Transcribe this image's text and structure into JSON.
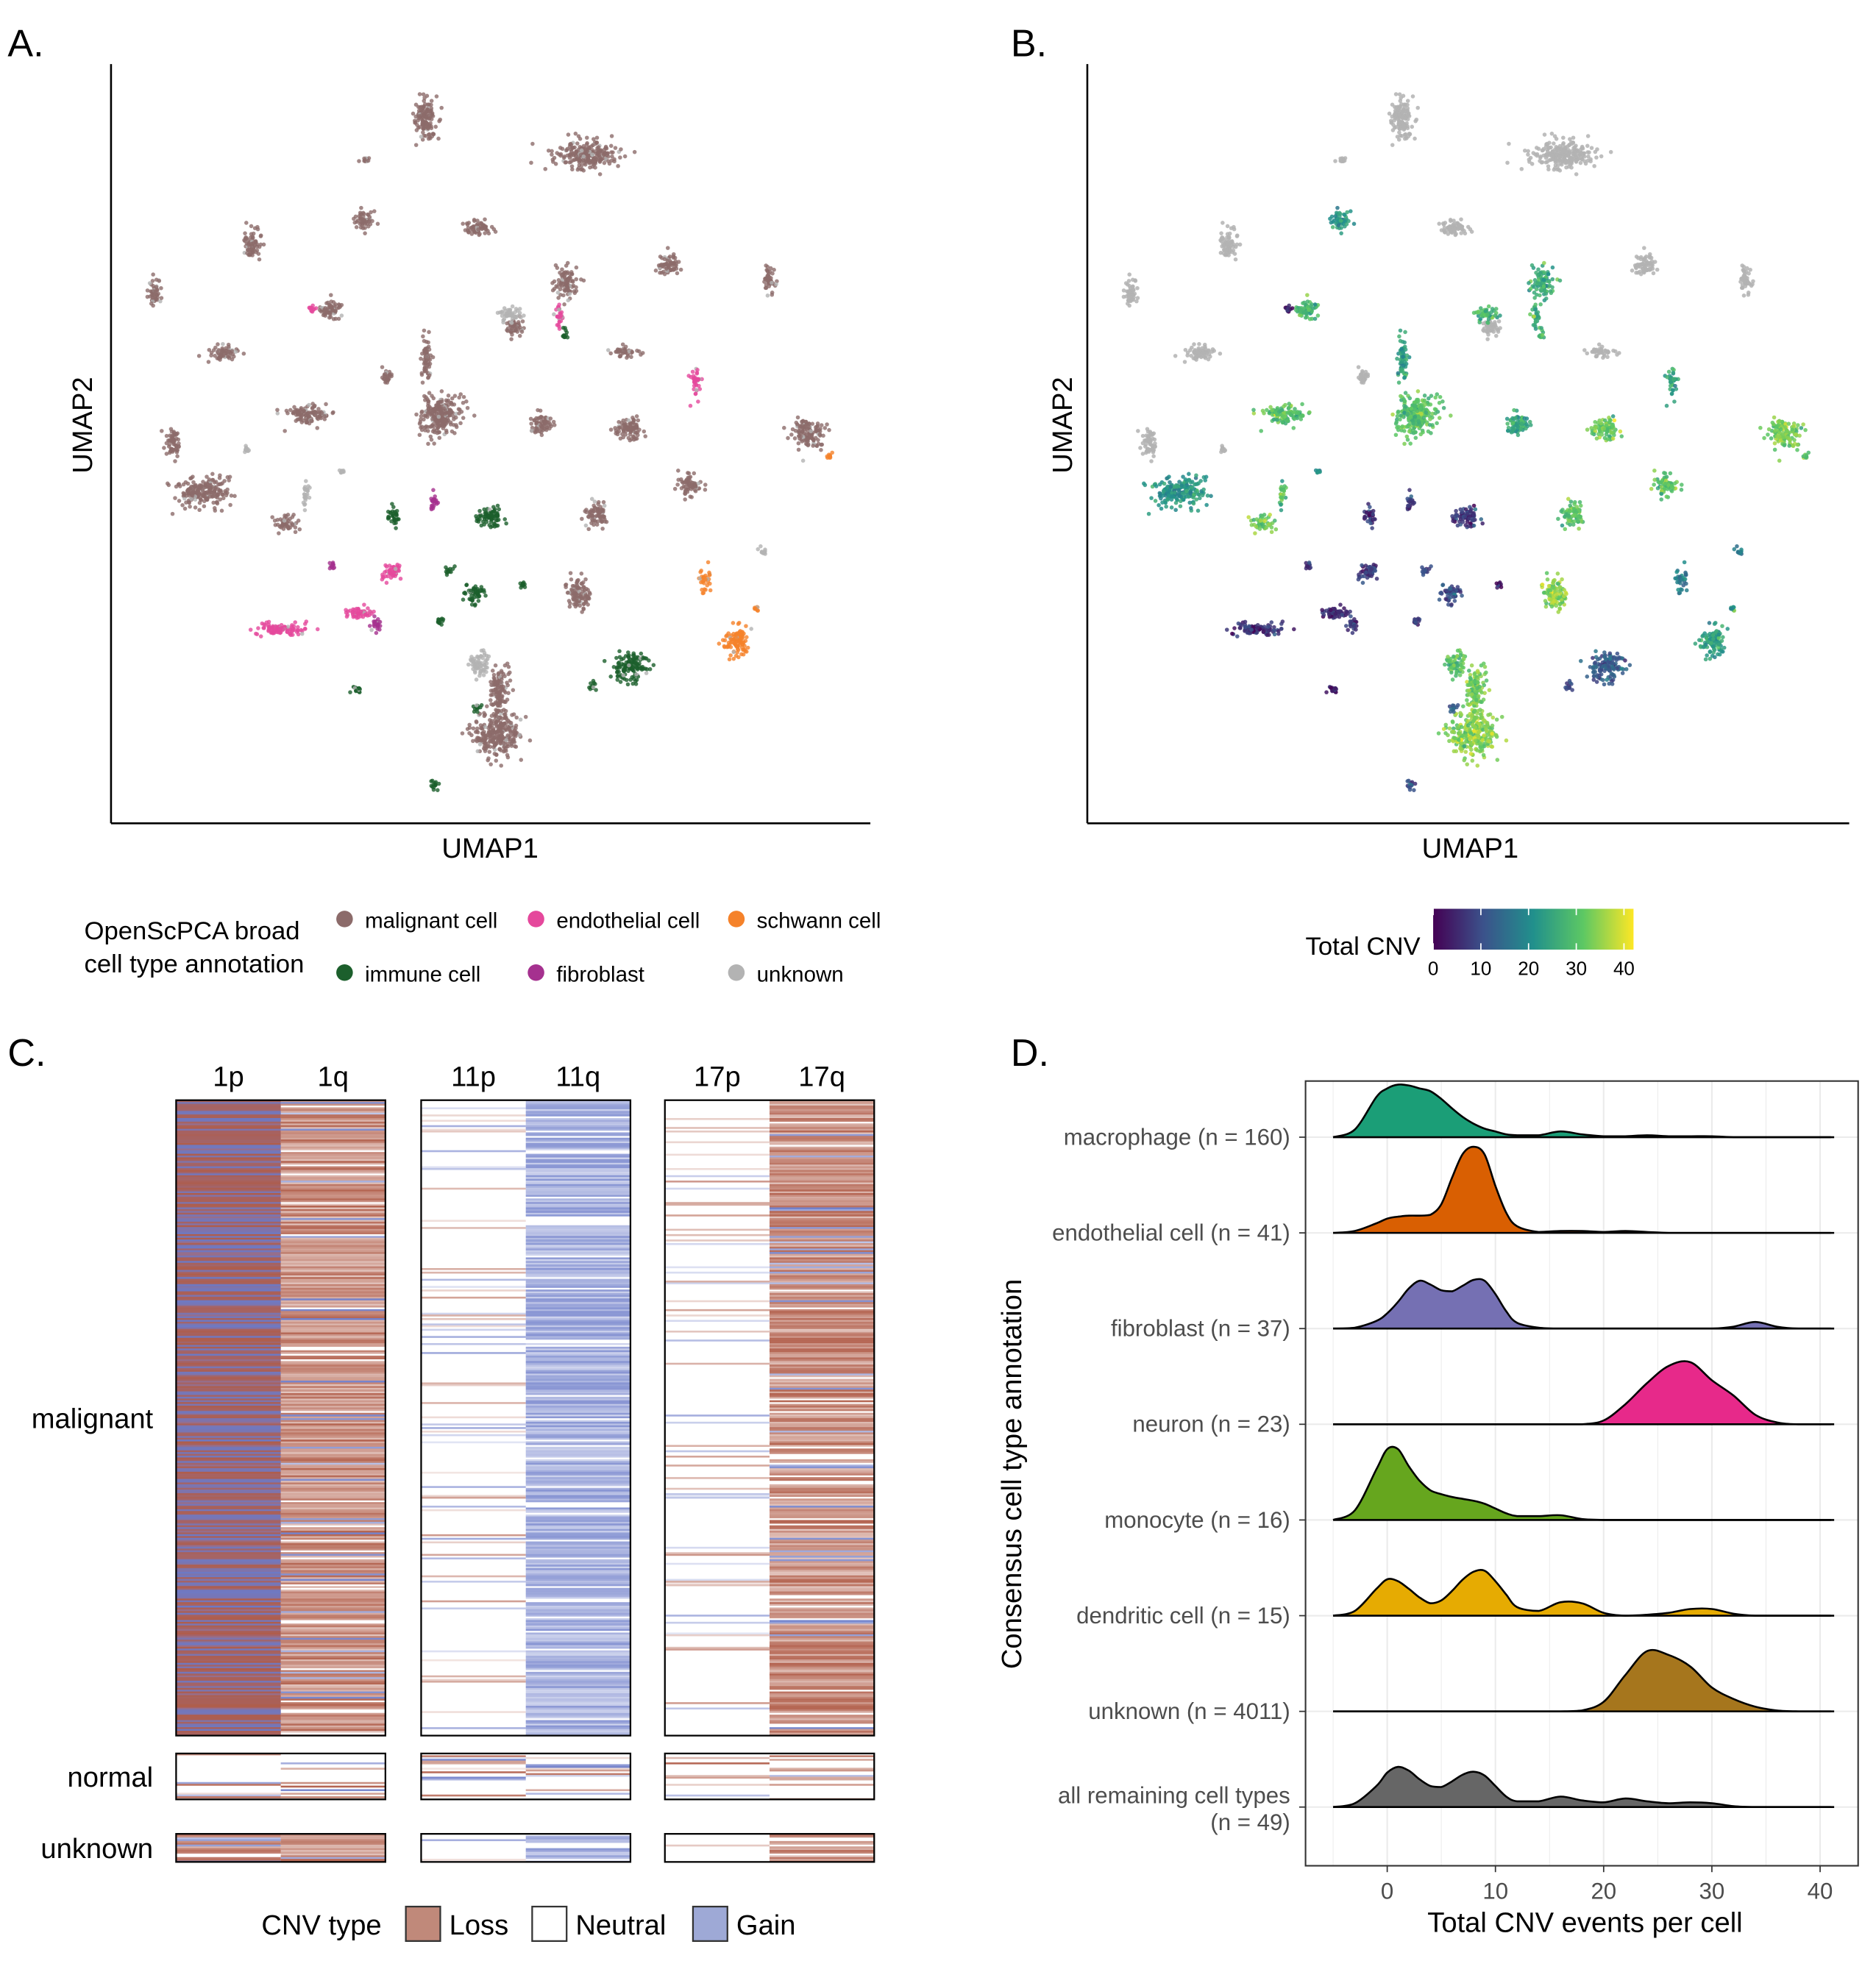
{
  "panels": {
    "a": "A.",
    "b": "B.",
    "c": "C.",
    "d": "D."
  },
  "chart_data": [
    {
      "panel": "A",
      "type": "scatter",
      "xlabel": "UMAP1",
      "ylabel": "UMAP2",
      "legend": {
        "title_line1": "OpenScPCA broad",
        "title_line2": "cell type annotation",
        "placement": "bottom",
        "entries": [
          {
            "label": "malignant cell",
            "color": "#8c6b6a"
          },
          {
            "label": "endothelial cell",
            "color": "#e5489c"
          },
          {
            "label": "schwann cell",
            "color": "#f5822a"
          },
          {
            "label": "immune cell",
            "color": "#1c5f2c"
          },
          {
            "label": "fibroblast",
            "color": "#a5318f"
          },
          {
            "label": "unknown",
            "color": "#b3b3b3"
          }
        ]
      },
      "grid": false
    },
    {
      "panel": "B",
      "type": "scatter",
      "xlabel": "UMAP1",
      "ylabel": "UMAP2",
      "colorbar": {
        "title": "Total CNV",
        "colormap": "viridis",
        "range": [
          0,
          42
        ],
        "ticks": [
          "0",
          "10",
          "20",
          "30",
          "40"
        ],
        "na_color": "#b3b3b3"
      },
      "grid": false
    },
    {
      "panel": "C",
      "type": "heatmap",
      "column_labels": [
        "1p",
        "1q",
        "11p",
        "11q",
        "17p",
        "17q"
      ],
      "row_groups": [
        "malignant",
        "normal",
        "unknown"
      ],
      "predominant_state_malignant": {
        "1p": "mixed",
        "1q": "Loss",
        "11p": "Neutral",
        "11q": "Gain",
        "17p": "Neutral",
        "17q": "Loss"
      },
      "legend": {
        "title": "CNV type",
        "entries": [
          {
            "label": "Loss",
            "color": "#c0897a"
          },
          {
            "label": "Neutral",
            "color": "#ffffff"
          },
          {
            "label": "Gain",
            "color": "#9ea9d6"
          }
        ],
        "placement": "bottom"
      }
    },
    {
      "panel": "D",
      "type": "area",
      "subtype": "ridgeline density",
      "xlabel": "Total CNV events per cell",
      "ylabel": "Consensus cell type annotation",
      "xlim": [
        -5,
        41
      ],
      "xticks": [
        "0",
        "10",
        "20",
        "30",
        "40"
      ],
      "grid": true,
      "x": [
        -5,
        -3,
        -1,
        0,
        1,
        2,
        3,
        4,
        5,
        6,
        7,
        8,
        9,
        10,
        11,
        12,
        14,
        16,
        18,
        20,
        22,
        24,
        26,
        28,
        30,
        32,
        34,
        36,
        38,
        41
      ],
      "series": [
        {
          "name": "macrophage (n = 160)",
          "color": "#1b9e77",
          "values": [
            0,
            0.08,
            0.42,
            0.51,
            0.55,
            0.54,
            0.51,
            0.48,
            0.4,
            0.3,
            0.21,
            0.14,
            0.09,
            0.06,
            0.03,
            0.02,
            0.02,
            0.06,
            0.03,
            0.01,
            0.01,
            0.02,
            0.01,
            0.01,
            0.01,
            0,
            0,
            0,
            0,
            0
          ]
        },
        {
          "name": "endothelial cell (n = 41)",
          "color": "#d95f02",
          "values": [
            0,
            0.02,
            0.1,
            0.15,
            0.17,
            0.18,
            0.18,
            0.19,
            0.3,
            0.58,
            0.83,
            0.9,
            0.82,
            0.49,
            0.21,
            0.07,
            0.01,
            0.02,
            0.02,
            0.01,
            0.02,
            0.01,
            0,
            0,
            0,
            0,
            0,
            0,
            0,
            0
          ]
        },
        {
          "name": "fibroblast (n = 37)",
          "color": "#7570b3",
          "values": [
            0,
            0.01,
            0.08,
            0.16,
            0.28,
            0.42,
            0.5,
            0.46,
            0.4,
            0.39,
            0.45,
            0.51,
            0.5,
            0.36,
            0.18,
            0.06,
            0.01,
            0,
            0,
            0,
            0,
            0,
            0,
            0,
            0,
            0.02,
            0.07,
            0.02,
            0,
            0
          ]
        },
        {
          "name": "neuron (n = 23)",
          "color": "#e7298a",
          "values": [
            0,
            0,
            0,
            0,
            0,
            0,
            0,
            0,
            0,
            0,
            0,
            0,
            0,
            0,
            0,
            0,
            0,
            0,
            0,
            0.04,
            0.21,
            0.43,
            0.61,
            0.65,
            0.46,
            0.3,
            0.1,
            0.02,
            0,
            0
          ]
        },
        {
          "name": "monocyte (n = 16)",
          "color": "#66a61e",
          "values": [
            0,
            0.1,
            0.53,
            0.74,
            0.74,
            0.56,
            0.41,
            0.31,
            0.27,
            0.24,
            0.22,
            0.2,
            0.17,
            0.12,
            0.07,
            0.04,
            0.04,
            0.05,
            0.01,
            0,
            0,
            0,
            0,
            0,
            0,
            0,
            0,
            0,
            0,
            0
          ]
        },
        {
          "name": "dendritic cell (n = 15)",
          "color": "#e6ab02",
          "values": [
            0,
            0.05,
            0.28,
            0.38,
            0.36,
            0.28,
            0.19,
            0.13,
            0.16,
            0.26,
            0.38,
            0.46,
            0.47,
            0.36,
            0.22,
            0.09,
            0.05,
            0.14,
            0.13,
            0.03,
            0,
            0.01,
            0.03,
            0.07,
            0.07,
            0.02,
            0,
            0,
            0,
            0
          ]
        },
        {
          "name": "unknown (n = 4011)",
          "color": "#a6761d",
          "values": [
            0,
            0,
            0,
            0,
            0,
            0,
            0,
            0,
            0,
            0,
            0,
            0,
            0,
            0,
            0,
            0,
            0,
            0,
            0.01,
            0.1,
            0.38,
            0.63,
            0.59,
            0.47,
            0.25,
            0.13,
            0.05,
            0.01,
            0,
            0
          ]
        },
        {
          "name": "all remaining cell types",
          "name_line2": "(n = 49)",
          "color": "#666666",
          "values": [
            0,
            0.04,
            0.22,
            0.36,
            0.42,
            0.38,
            0.29,
            0.22,
            0.21,
            0.27,
            0.34,
            0.37,
            0.33,
            0.22,
            0.11,
            0.06,
            0.06,
            0.11,
            0.07,
            0.05,
            0.09,
            0.06,
            0.04,
            0.05,
            0.04,
            0.01,
            0,
            0,
            0,
            0
          ]
        }
      ]
    }
  ]
}
